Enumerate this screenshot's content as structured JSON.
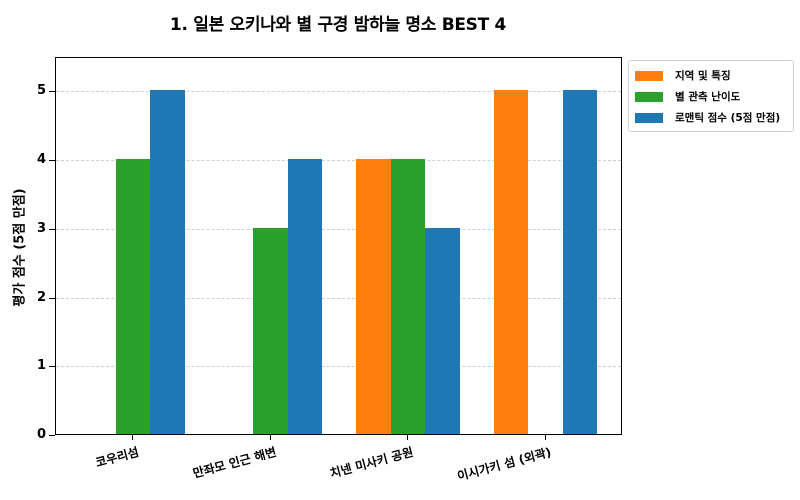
{
  "chart_data": {
    "type": "bar",
    "title": "1. 일본 오키나와 별 구경 밤하늘 명소 BEST 4",
    "xlabel": "",
    "ylabel": "평가 점수 (5점 만점)",
    "ylim": [
      0,
      5.5
    ],
    "yticks": [
      0,
      1,
      2,
      3,
      4,
      5
    ],
    "grid": "horizontal dashed",
    "legend_position": "outside upper right",
    "categories": [
      "코우리섬",
      "만좌모 인근 해변",
      "치넨 미사키 공원",
      "이시가키 섬 (외곽)"
    ],
    "series": [
      {
        "name": "지역 및 특징",
        "color": "#ff7f0e",
        "values": [
          0,
          0,
          4,
          5
        ]
      },
      {
        "name": "별 관측 난이도",
        "color": "#2ca02c",
        "values": [
          4,
          3,
          4,
          0
        ]
      },
      {
        "name": "로맨틱 점수 (5점 만점)",
        "color": "#1f77b4",
        "values": [
          5,
          4,
          3,
          5
        ]
      }
    ]
  },
  "labels": {
    "title": "1. 일본 오키나와 별 구경 밤하늘 명소 BEST 4",
    "ylabel": "평가 점수 (5점 만점)",
    "yticks": [
      "0",
      "1",
      "2",
      "3",
      "4",
      "5"
    ],
    "categories": [
      "코우리섬",
      "만좌모 인근 해변",
      "치넨 미사키 공원",
      "이시가키 섬 (외곽)"
    ],
    "legend": [
      "지역 및 특징",
      "별 관측 난이도",
      "로맨틱 점수 (5점 만점)"
    ]
  }
}
